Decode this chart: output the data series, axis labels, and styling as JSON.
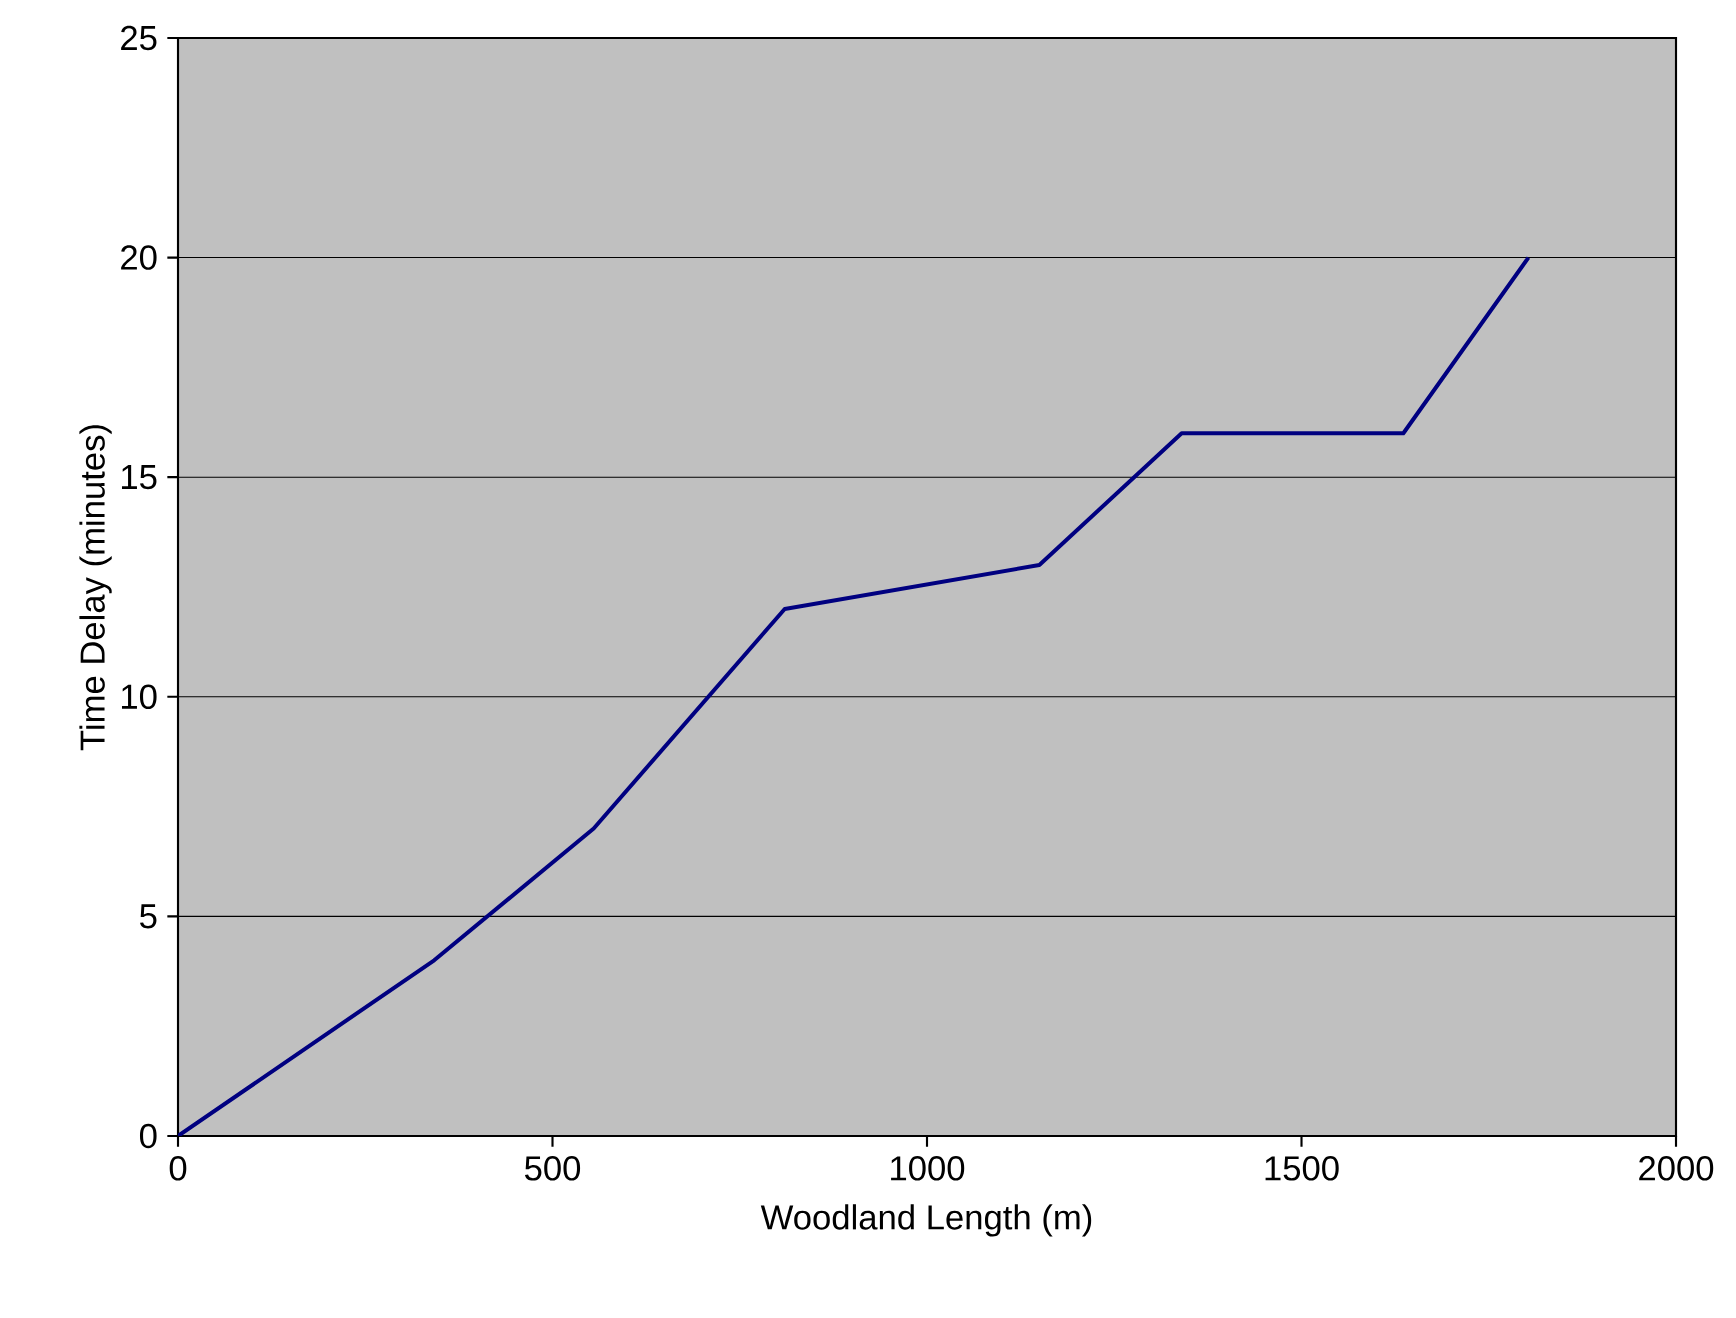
{
  "chart_data": {
    "type": "line",
    "xlabel": "Woodland Length (m)",
    "ylabel": "Time Delay (minutes)",
    "x": [
      0,
      342,
      555,
      810,
      1150,
      1340,
      1636,
      1803
    ],
    "series": [
      {
        "color": "#000080",
        "values": [
          0,
          4,
          7,
          12,
          13,
          16,
          16,
          20
        ]
      }
    ],
    "xlim": [
      0,
      2000
    ],
    "ylim": [
      0,
      25
    ],
    "xticks": [
      0,
      500,
      1000,
      1500,
      2000
    ],
    "yticks": [
      0,
      5,
      10,
      15,
      20,
      25
    ],
    "grid": "y",
    "marker": "none",
    "line_style": "solid"
  }
}
